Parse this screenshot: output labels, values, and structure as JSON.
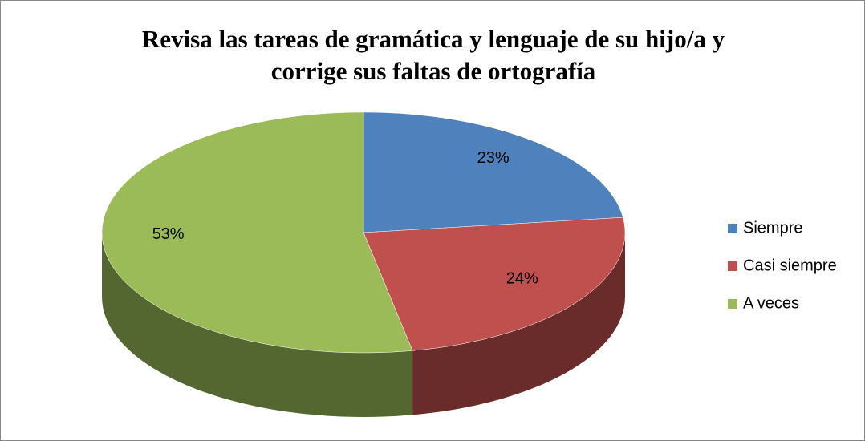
{
  "chart_data": {
    "type": "pie",
    "title": [
      "Revisa las tareas de gramática y lenguaje de su hijo/a y",
      "corrige sus faltas de ortografía"
    ],
    "categories": [
      "Siempre",
      "Casi siempre",
      "A veces"
    ],
    "values": [
      23,
      24,
      53
    ],
    "value_labels": [
      "23%",
      "24%",
      "53%"
    ],
    "colors": [
      "#4f81bd",
      "#c0504d",
      "#9bbb59"
    ],
    "legend": "right"
  }
}
